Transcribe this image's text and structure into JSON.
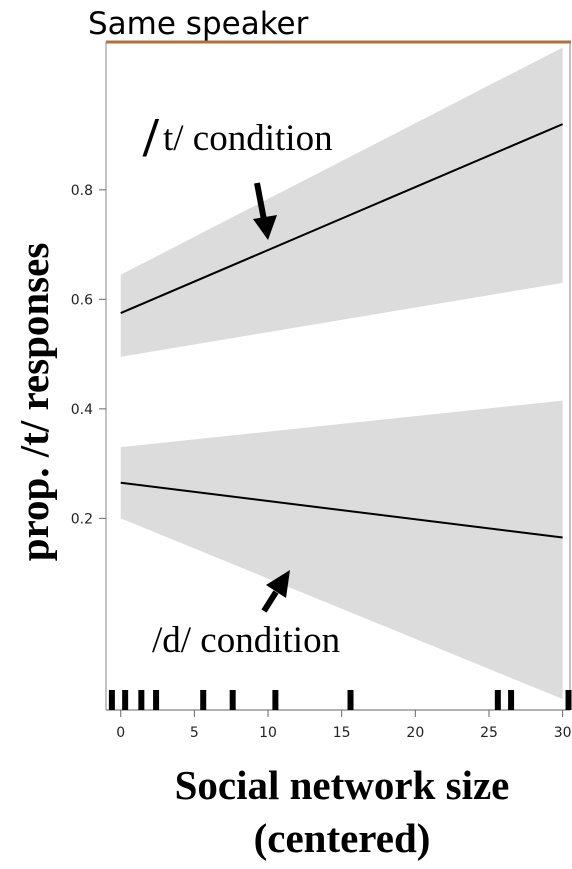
{
  "chart_data": {
    "type": "line",
    "title": "Same speaker",
    "xlabel_line1": "Social network size",
    "xlabel_line2": "(centered)",
    "ylabel": "prop. /t/ responses",
    "xlim": [
      -1,
      30.5
    ],
    "ylim": [
      -0.15,
      1.07
    ],
    "x_ticks": [
      0,
      5,
      10,
      15,
      20,
      25,
      30
    ],
    "y_ticks": [
      0.2,
      0.4,
      0.6,
      0.8
    ],
    "y_tick_labels": [
      "0.2",
      "0.4",
      "0.6",
      "0.8"
    ],
    "grid": false,
    "series": [
      {
        "name": "/t/ condition",
        "x": [
          0,
          30
        ],
        "y": [
          0.575,
          0.92
        ],
        "ci_lower": [
          0.495,
          0.63
        ],
        "ci_upper": [
          0.645,
          1.06
        ]
      },
      {
        "name": "/d/ condition",
        "x": [
          0,
          30
        ],
        "y": [
          0.265,
          0.165
        ],
        "ci_lower": [
          0.2,
          -0.13
        ],
        "ci_upper": [
          0.33,
          0.415
        ]
      }
    ],
    "rug": [
      -0.6,
      0.3,
      1.4,
      2.4,
      5.6,
      7.6,
      10.5,
      15.6,
      25.6,
      26.5,
      30.4
    ],
    "annotations": [
      {
        "slash": "/",
        "text": "t/ condition"
      },
      {
        "text": "/d/ condition"
      }
    ]
  }
}
